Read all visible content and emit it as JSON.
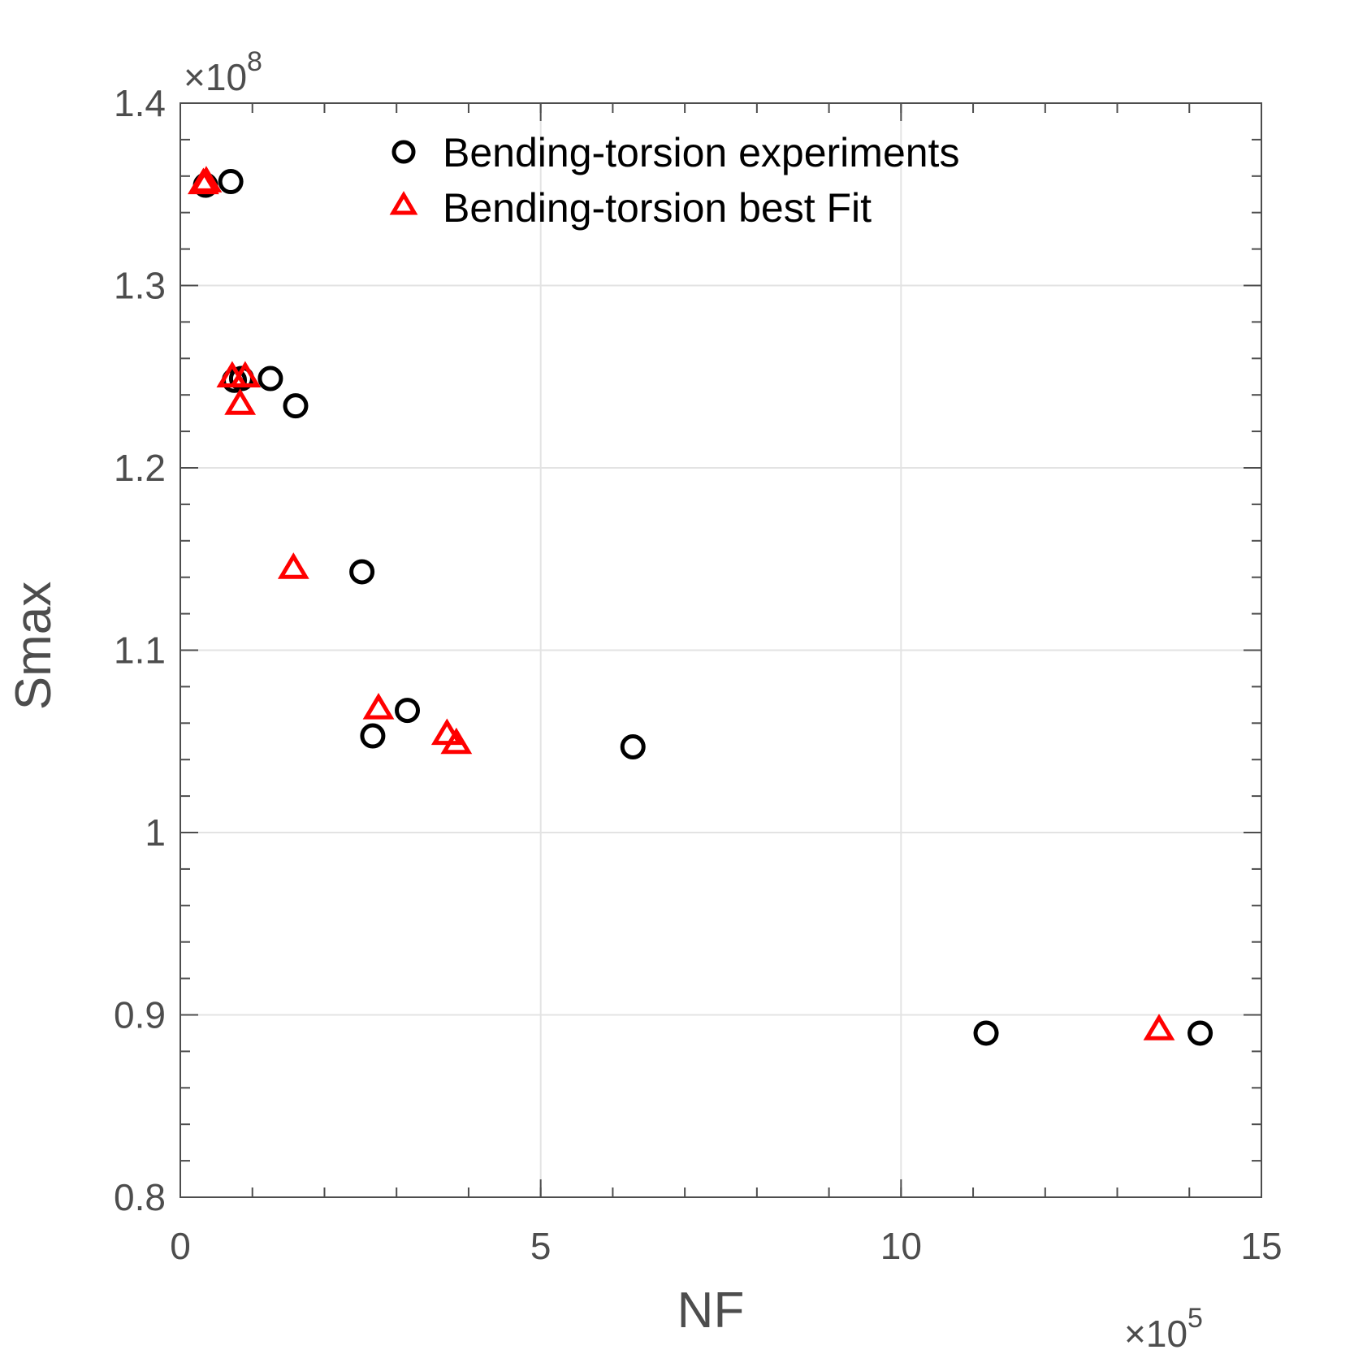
{
  "chart_data": {
    "type": "scatter",
    "title": "",
    "xlabel": "NF",
    "ylabel": "Smax",
    "x_multiplier_label": {
      "times": "×",
      "base": "10",
      "exp": "5"
    },
    "y_multiplier_label": {
      "times": "×",
      "base": "10",
      "exp": "8"
    },
    "xlim": [
      0,
      15
    ],
    "ylim": [
      0.8,
      1.4
    ],
    "xticks": [
      0,
      5,
      10,
      15
    ],
    "xtick_labels": [
      "0",
      "5",
      "10",
      "15"
    ],
    "yticks": [
      0.8,
      0.9,
      1.0,
      1.1,
      1.2,
      1.3,
      1.4
    ],
    "ytick_labels": [
      "0.8",
      "0.9",
      "1",
      "1.1",
      "1.2",
      "1.3",
      "1.4"
    ],
    "grid": true,
    "legend_position": "top-center",
    "series": [
      {
        "name": "Bending-torsion experiments",
        "marker": "circle",
        "color": "#000000",
        "points": [
          {
            "x": 0.35,
            "y": 1.355
          },
          {
            "x": 0.7,
            "y": 1.357
          },
          {
            "x": 0.75,
            "y": 1.248
          },
          {
            "x": 0.85,
            "y": 1.249
          },
          {
            "x": 1.25,
            "y": 1.249
          },
          {
            "x": 1.6,
            "y": 1.234
          },
          {
            "x": 2.52,
            "y": 1.143
          },
          {
            "x": 2.67,
            "y": 1.053
          },
          {
            "x": 3.15,
            "y": 1.067
          },
          {
            "x": 6.28,
            "y": 1.047
          },
          {
            "x": 11.18,
            "y": 0.89
          },
          {
            "x": 14.15,
            "y": 0.89
          }
        ]
      },
      {
        "name": "Bending-torsion best Fit",
        "marker": "triangle",
        "color": "#ff0000",
        "points": [
          {
            "x": 0.32,
            "y": 1.356
          },
          {
            "x": 0.36,
            "y": 1.357
          },
          {
            "x": 0.72,
            "y": 1.25
          },
          {
            "x": 0.9,
            "y": 1.25
          },
          {
            "x": 0.83,
            "y": 1.235
          },
          {
            "x": 1.57,
            "y": 1.145
          },
          {
            "x": 2.75,
            "y": 1.068
          },
          {
            "x": 3.7,
            "y": 1.054
          },
          {
            "x": 3.83,
            "y": 1.049
          },
          {
            "x": 13.58,
            "y": 0.892
          }
        ]
      }
    ]
  }
}
